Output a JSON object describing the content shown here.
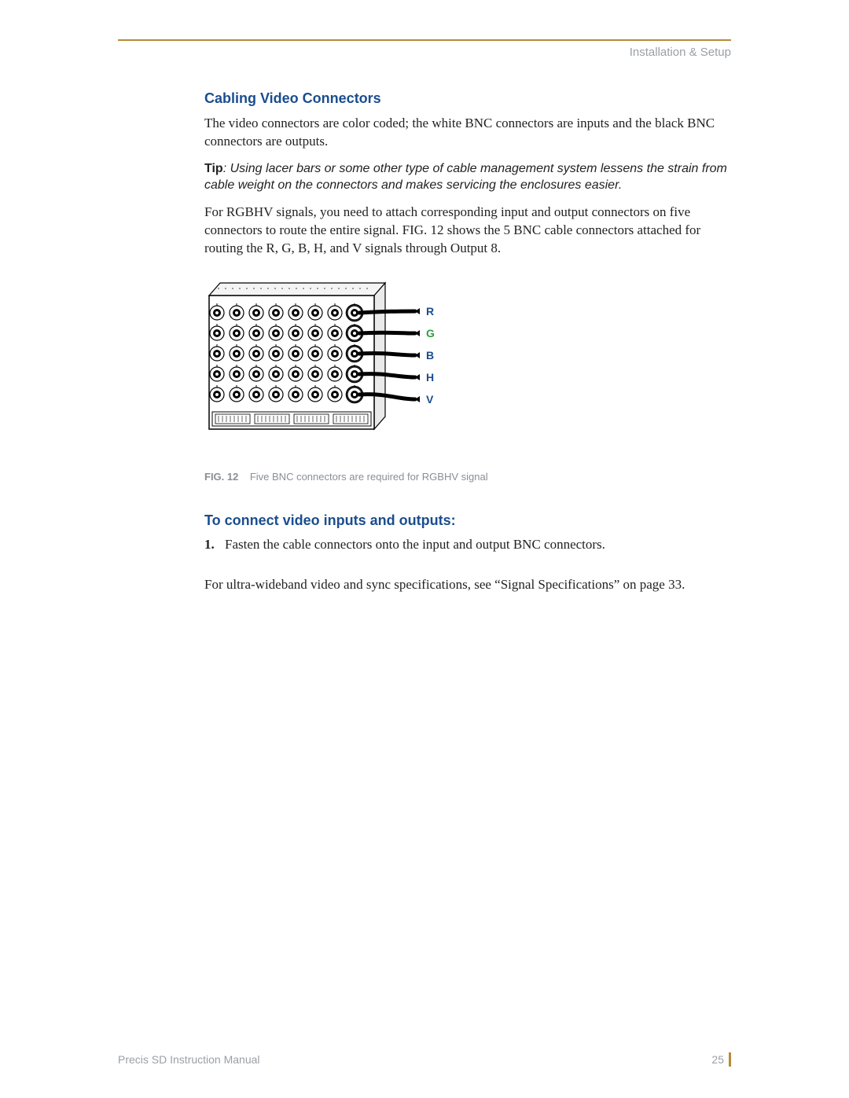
{
  "header": {
    "section_label": "Installation & Setup"
  },
  "section1": {
    "heading": "Cabling Video Connectors",
    "p1": "The video connectors are color coded; the white BNC connectors are inputs and the black BNC connectors are outputs.",
    "tip_label": "Tip",
    "tip_body": ": Using lacer bars or some other type of cable management system lessens the strain from cable weight on the connectors and makes servicing the enclosures easier.",
    "p2": "For RGBHV signals, you need to attach corresponding input and output connectors on five connectors to route the entire signal. FIG. 12 shows the 5 BNC cable connectors attached for routing the R, G, B, H, and V signals through Output 8."
  },
  "figure": {
    "number": "FIG. 12",
    "caption": "Five BNC connectors are required for RGBHV signal",
    "signals": [
      {
        "label": "R",
        "color": "#1a4d8f"
      },
      {
        "label": "G",
        "color": "#2e9e3f"
      },
      {
        "label": "B",
        "color": "#1a4d8f"
      },
      {
        "label": "H",
        "color": "#1a4d8f"
      },
      {
        "label": "V",
        "color": "#1a4d8f"
      }
    ],
    "rows": 5,
    "cols_per_row": 8,
    "chassis_stroke": "#000000",
    "connector_fill": "#000000",
    "cable_color": "#000000"
  },
  "section2": {
    "heading": "To connect video inputs and outputs:",
    "step_num": "1.",
    "step_text": "Fasten the cable connectors onto the input and output BNC connectors.",
    "p_after": "For ultra-wideband video and sync specifications, see “Signal Specifications” on page 33."
  },
  "footer": {
    "doc_title": "Precis SD Instruction Manual",
    "page_number": "25"
  }
}
